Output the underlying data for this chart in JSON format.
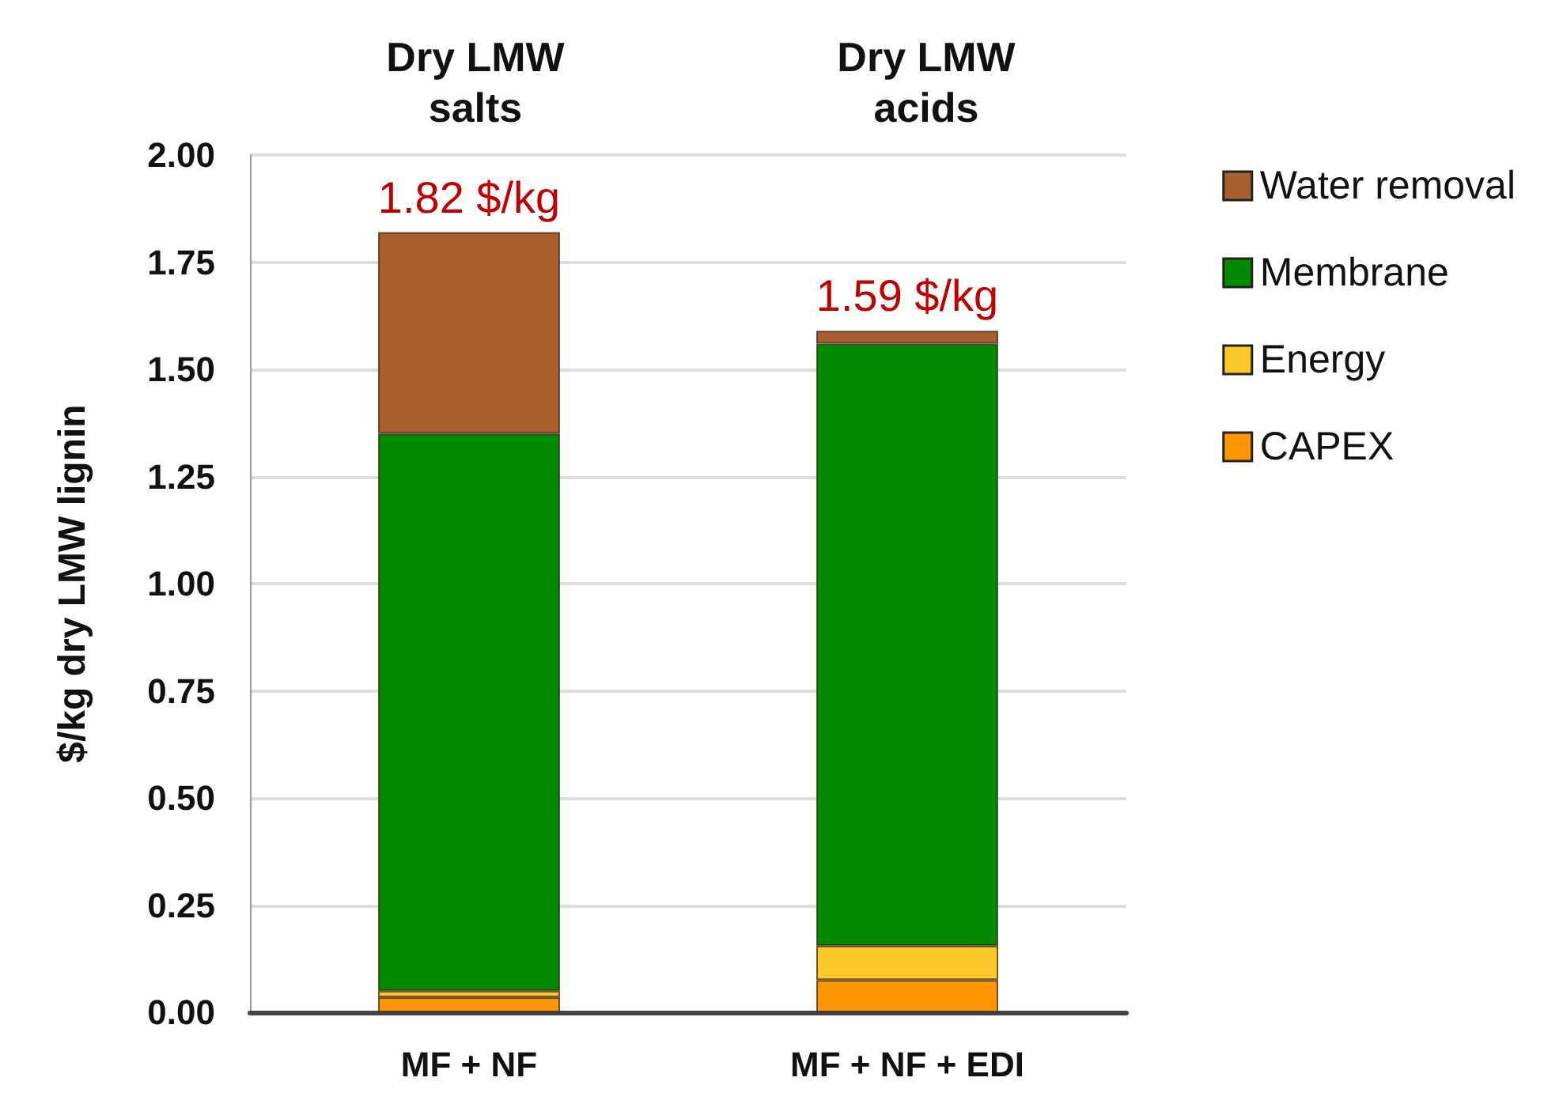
{
  "chart_data": {
    "type": "bar",
    "stacked": true,
    "ylabel": "$/kg dry LMW lignin",
    "categories": [
      "MF + NF",
      "MF + NF + EDI"
    ],
    "series": [
      {
        "name": "CAPEX",
        "color": "#ff9500",
        "values": [
          0.035,
          0.075
        ]
      },
      {
        "name": "Energy",
        "color": "#fdc82a",
        "values": [
          0.015,
          0.08
        ]
      },
      {
        "name": "Membrane",
        "color": "#008a00",
        "values": [
          1.3,
          1.405
        ]
      },
      {
        "name": "Water removal",
        "color": "#a8602f",
        "values": [
          0.47,
          0.03
        ]
      }
    ],
    "totals": [
      "1.82 $/kg",
      "1.59 $/kg"
    ],
    "annotations": [
      "Dry LMW\nsalts",
      "Dry LMW\nacids"
    ],
    "ylim": [
      0,
      2
    ],
    "yticks": [
      {
        "value": 0,
        "label": "0.00"
      },
      {
        "value": 0.25,
        "label": "0.25"
      },
      {
        "value": 0.5,
        "label": "0.50"
      },
      {
        "value": 0.75,
        "label": "0.75"
      },
      {
        "value": 1,
        "label": "1.00"
      },
      {
        "value": 1.25,
        "label": "1.25"
      },
      {
        "value": 1.5,
        "label": "1.50"
      },
      {
        "value": 1.75,
        "label": "1.75"
      },
      {
        "value": 2,
        "label": "2.00"
      }
    ],
    "grid": "y",
    "legend": "right"
  }
}
